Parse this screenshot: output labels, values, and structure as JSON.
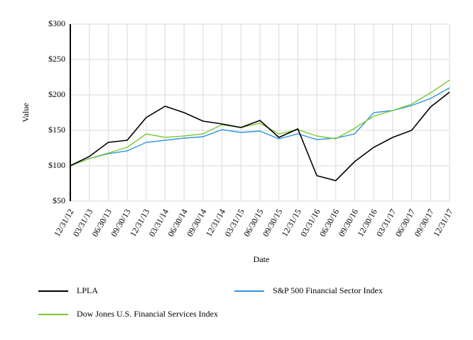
{
  "chart_data": {
    "type": "line",
    "xlabel": "Date",
    "ylabel": "Value",
    "ylim": [
      50,
      300
    ],
    "yticks": [
      "$50",
      "$100",
      "$150",
      "$200",
      "$250",
      "$300"
    ],
    "ytick_values": [
      50,
      100,
      150,
      200,
      250,
      300
    ],
    "grid": true,
    "legend_position": "bottom",
    "categories": [
      "12/31/12",
      "03/31/13",
      "06/30/13",
      "09/30/13",
      "12/31/13",
      "03/31/14",
      "06/30/14",
      "09/30/14",
      "12/31/14",
      "03/31/15",
      "06/30/15",
      "09/30/15",
      "12/31/15",
      "03/31/16",
      "06/30/16",
      "09/30/16",
      "12/30/16",
      "03/31/17",
      "06/30/17",
      "09/30/17",
      "12/31/17"
    ],
    "series": [
      {
        "name": "LPLA",
        "color": "#000000",
        "values": [
          100,
          113,
          133,
          136,
          168,
          184,
          175,
          163,
          159,
          154,
          164,
          140,
          152,
          86,
          79,
          106,
          126,
          140,
          150,
          183,
          204
        ]
      },
      {
        "name": "S&P 500 Financial Sector Index",
        "color": "#2f96dc",
        "values": [
          100,
          110,
          117,
          121,
          133,
          136,
          139,
          141,
          151,
          147,
          149,
          138,
          145,
          137,
          139,
          145,
          175,
          178,
          185,
          195,
          210
        ]
      },
      {
        "name": "Dow Jones U.S. Financial Services Index",
        "color": "#7dc832",
        "values": [
          100,
          110,
          118,
          126,
          145,
          140,
          142,
          145,
          158,
          154,
          160,
          145,
          151,
          142,
          138,
          153,
          170,
          178,
          187,
          203,
          221
        ]
      }
    ]
  }
}
